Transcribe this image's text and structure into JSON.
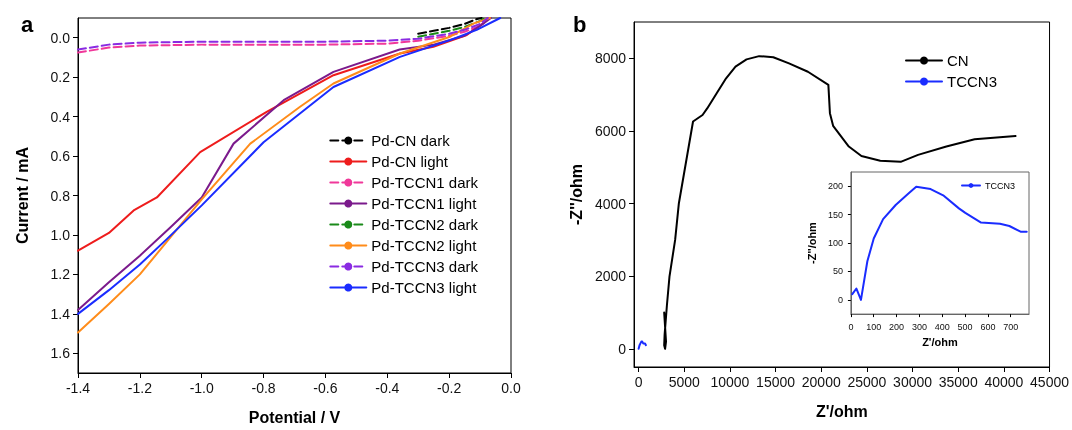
{
  "chart_data": [
    {
      "type": "line",
      "title": "a",
      "xlabel": "Potential / V",
      "ylabel": "Current / mA",
      "xlim": [
        -1.4,
        0.0
      ],
      "ylim": [
        1.7,
        -0.1
      ],
      "xticks": [
        -1.4,
        -1.2,
        {
          "value": -1.0,
          "label": "-1.0"
        },
        -0.8,
        -0.6,
        -0.4,
        -0.2,
        {
          "value": 0,
          "label": "0.0"
        }
      ],
      "yticks": [
        {
          "value": 0,
          "label": "0.0"
        },
        0.2,
        0.4,
        0.6,
        0.8,
        {
          "value": 1.0,
          "label": "1.0"
        },
        1.2,
        1.4,
        1.6
      ],
      "grid": false,
      "legend": "right",
      "series": [
        {
          "name": "Pd-CN dark",
          "color": "#000000",
          "line_style": "dashed",
          "x": [
            -0.3,
            -0.25,
            -0.2,
            -0.15,
            -0.11,
            -0.095
          ],
          "values": [
            -0.02,
            -0.035,
            -0.05,
            -0.07,
            -0.095,
            -0.1
          ]
        },
        {
          "name": "Pd-CN light",
          "color": "#ee1c1c",
          "line_style": "solid",
          "x": [
            -1.4,
            -1.3,
            -1.22,
            -1.145,
            -1.005,
            -0.79,
            -0.574,
            -0.359,
            -0.251,
            -0.143,
            -0.09,
            -0.075
          ],
          "values": [
            1.08,
            0.99,
            0.876,
            0.81,
            0.58,
            0.376,
            0.19,
            0.08,
            0.046,
            -0.014,
            -0.073,
            -0.1
          ]
        },
        {
          "name": "Pd-TCCN1 dark",
          "color": "#f0389a",
          "line_style": "dashed",
          "x": [
            -1.4,
            -1.3,
            -1.2,
            -1.0,
            -0.8,
            -0.6,
            -0.4,
            -0.3,
            -0.2,
            -0.15,
            -0.1,
            -0.07
          ],
          "values": [
            0.075,
            0.05,
            0.04,
            0.035,
            0.035,
            0.035,
            0.03,
            0.015,
            -0.01,
            -0.03,
            -0.06,
            -0.1
          ]
        },
        {
          "name": "Pd-TCCN1 light",
          "color": "#7b1a8c",
          "line_style": "solid",
          "x": [
            -1.4,
            -1.3,
            -1.2,
            -1.1,
            -1.0,
            -0.897,
            -0.735,
            -0.574,
            -0.36,
            -0.25,
            -0.15,
            -0.1,
            -0.065
          ],
          "values": [
            1.38,
            1.24,
            1.105,
            0.96,
            0.81,
            0.537,
            0.317,
            0.173,
            0.06,
            0.035,
            -0.01,
            -0.06,
            -0.1
          ]
        },
        {
          "name": "Pd-TCCN2 dark",
          "color": "#1a8a1a",
          "line_style": "dashed",
          "x": [
            -0.3,
            -0.2,
            -0.15,
            -0.1,
            -0.085
          ],
          "values": [
            -0.005,
            -0.035,
            -0.055,
            -0.085,
            -0.1
          ]
        },
        {
          "name": "Pd-TCCN2 light",
          "color": "#ff8c1a",
          "line_style": "solid",
          "x": [
            -1.4,
            -1.3,
            -1.2,
            -1.1,
            -1.0,
            -0.843,
            -0.682,
            -0.574,
            -0.359,
            -0.197,
            -0.12,
            -0.068
          ],
          "values": [
            1.495,
            1.35,
            1.2,
            1.01,
            0.82,
            0.537,
            0.35,
            0.232,
            0.08,
            -0.005,
            -0.073,
            -0.1
          ]
        },
        {
          "name": "Pd-TCCN3 dark",
          "color": "#8a2be2",
          "line_style": "dashed",
          "x": [
            -1.4,
            -1.3,
            -1.2,
            -1.0,
            -0.8,
            -0.6,
            -0.4,
            -0.3,
            -0.2,
            -0.15,
            -0.1,
            -0.075
          ],
          "values": [
            0.06,
            0.035,
            0.025,
            0.02,
            0.02,
            0.02,
            0.015,
            0.005,
            -0.02,
            -0.04,
            -0.07,
            -0.1
          ]
        },
        {
          "name": "Pd-TCCN3 light",
          "color": "#1a2cff",
          "line_style": "solid",
          "x": [
            -1.4,
            -1.3,
            -1.2,
            -1.112,
            -1.0,
            -0.8,
            -0.574,
            -0.359,
            -0.197,
            -0.111,
            -0.035
          ],
          "values": [
            1.4,
            1.28,
            1.15,
            1.02,
            0.85,
            0.53,
            0.25,
            0.097,
            0.012,
            -0.04,
            -0.1
          ]
        }
      ]
    },
    {
      "type": "line",
      "title": "b",
      "xlabel": "Z'/ohm",
      "ylabel": "-Z''/ohm",
      "xlim": [
        -500,
        45000
      ],
      "ylim": [
        -500,
        9000
      ],
      "xticks": [
        0,
        5000,
        10000,
        15000,
        20000,
        25000,
        30000,
        35000,
        40000,
        45000
      ],
      "yticks": [
        0,
        2000,
        4000,
        6000,
        8000
      ],
      "grid": false,
      "legend": "top right",
      "series": [
        {
          "name": "CN",
          "color": "#000000",
          "x": [
            2800,
            2900,
            3000,
            2900,
            2800,
            2850,
            3100,
            3380,
            4000,
            4410,
            5960,
            7000,
            7510,
            8550,
            9580,
            10610,
            11820,
            13200,
            14750,
            16470,
            18540,
            20780,
            20950,
            21300,
            23020,
            24400,
            26460,
            28700,
            30600,
            33700,
            36800,
            41280
          ],
          "values": [
            1000,
            600,
            200,
            0,
            100,
            400,
            1200,
            1990,
            3000,
            4010,
            6260,
            6440,
            6620,
            7040,
            7450,
            7770,
            7970,
            8060,
            8030,
            7860,
            7630,
            7270,
            6490,
            6140,
            5570,
            5310,
            5180,
            5150,
            5340,
            5570,
            5770,
            5860
          ]
        },
        {
          "name": "TCCN3",
          "color": "#1a2cff",
          "x": [
            0,
            50,
            100,
            200,
            300,
            400,
            500,
            600,
            700,
            800
          ],
          "values": [
            0,
            0,
            100,
            150,
            200,
            200,
            150,
            150,
            150,
            100
          ]
        }
      ]
    },
    {
      "type": "line",
      "xlabel": "Z'/ohm",
      "ylabel": "-Z''/ohm",
      "xlim": [
        0,
        780
      ],
      "ylim": [
        -25,
        225
      ],
      "xticks": [
        0,
        100,
        200,
        300,
        400,
        500,
        600,
        700
      ],
      "yticks": [
        0,
        50,
        100,
        150,
        200
      ],
      "grid": false,
      "legend": "top right",
      "series": [
        {
          "name": "TCCN3",
          "color": "#1a2cff",
          "x": [
            6,
            24,
            44,
            72,
            100,
            141,
            196,
            252,
            286,
            349,
            404,
            473,
            501,
            570,
            653,
            694,
            743,
            770
          ],
          "values": [
            10,
            20,
            0,
            68,
            108,
            142,
            167,
            187,
            199,
            195,
            184,
            161,
            153,
            136,
            134,
            130,
            120,
            120
          ]
        }
      ]
    }
  ]
}
